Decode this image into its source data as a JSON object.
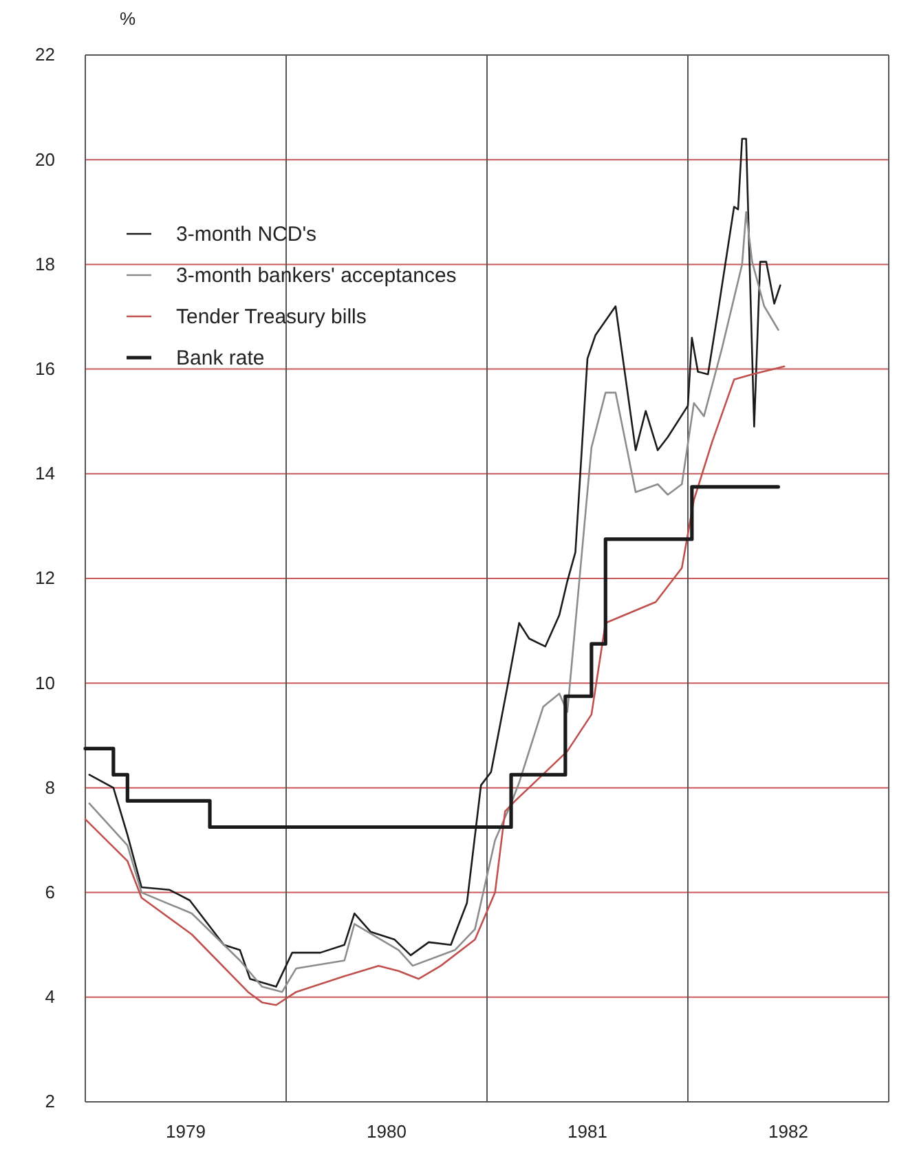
{
  "chart_data": {
    "type": "line",
    "ylabel": "%",
    "xlim": [
      1979,
      1983
    ],
    "xticks": [
      {
        "value": 1979,
        "label": null
      },
      {
        "value": 1979.5,
        "label": "1979"
      },
      {
        "value": 1980,
        "label": null
      },
      {
        "value": 1980.5,
        "label": "1980"
      },
      {
        "value": 1981,
        "label": null
      },
      {
        "value": 1981.5,
        "label": "1981"
      },
      {
        "value": 1982,
        "label": null
      },
      {
        "value": 1982.5,
        "label": "1982"
      },
      {
        "value": 1983,
        "label": null
      }
    ],
    "ylim": [
      2,
      22
    ],
    "yticks": [
      2,
      4,
      6,
      8,
      10,
      12,
      14,
      16,
      18,
      20,
      22
    ],
    "grid": true,
    "legend": "top left",
    "series": [
      {
        "name": "3-month NCD's",
        "color": "#1a1a1a",
        "x": [
          1979.02,
          1979.14,
          1979.21,
          1979.28,
          1979.42,
          1979.52,
          1979.6,
          1979.69,
          1979.77,
          1979.82,
          1979.95,
          1980.03,
          1980.17,
          1980.29,
          1980.34,
          1980.42,
          1980.54,
          1980.62,
          1980.71,
          1980.82,
          1980.9,
          1980.97,
          1981.02,
          1981.05,
          1981.1,
          1981.16,
          1981.21,
          1981.29,
          1981.36,
          1981.4,
          1981.44,
          1981.5,
          1981.54,
          1981.64,
          1981.74,
          1981.79,
          1981.85,
          1981.9,
          1982.0,
          1982.02,
          1982.05,
          1982.1,
          1982.15,
          1982.23,
          1982.25,
          1982.27,
          1982.29,
          1982.33,
          1982.36,
          1982.39,
          1982.43,
          1982.46
        ],
        "values": [
          8.25,
          8.0,
          7.1,
          6.1,
          6.05,
          5.85,
          5.45,
          5.0,
          4.9,
          4.35,
          4.2,
          4.85,
          4.85,
          5.0,
          5.6,
          5.25,
          5.1,
          4.8,
          5.05,
          5.0,
          5.8,
          8.05,
          8.3,
          8.9,
          9.9,
          11.15,
          10.85,
          10.7,
          11.3,
          11.95,
          12.5,
          16.2,
          16.65,
          17.2,
          14.45,
          15.2,
          14.45,
          14.7,
          15.3,
          16.6,
          15.95,
          15.9,
          17.1,
          19.1,
          19.05,
          20.4,
          20.4,
          14.9,
          18.05,
          18.05,
          17.25,
          17.6
        ]
      },
      {
        "name": "3-month bankers' acceptances",
        "color": "#8c8c8c",
        "x": [
          1979.02,
          1979.21,
          1979.28,
          1979.53,
          1979.77,
          1979.88,
          1979.98,
          1980.05,
          1980.29,
          1980.34,
          1980.56,
          1980.63,
          1980.84,
          1980.94,
          1981.04,
          1981.12,
          1981.16,
          1981.28,
          1981.36,
          1981.4,
          1981.52,
          1981.59,
          1981.64,
          1981.74,
          1981.85,
          1981.9,
          1981.97,
          1982.03,
          1982.08,
          1982.17,
          1982.27,
          1982.29,
          1982.32,
          1982.38,
          1982.45
        ],
        "values": [
          7.7,
          6.9,
          6.0,
          5.6,
          4.7,
          4.2,
          4.1,
          4.55,
          4.7,
          5.4,
          4.9,
          4.6,
          4.9,
          5.3,
          7.0,
          7.7,
          8.1,
          9.55,
          9.8,
          9.45,
          14.5,
          15.55,
          15.55,
          13.65,
          13.8,
          13.6,
          13.8,
          15.35,
          15.1,
          16.4,
          18.0,
          19.0,
          18.05,
          17.2,
          16.75
        ]
      },
      {
        "name": "Tender Treasury bills",
        "color": "#c0504d",
        "x": [
          1979.0,
          1979.21,
          1979.28,
          1979.53,
          1979.81,
          1979.88,
          1979.95,
          1980.05,
          1980.29,
          1980.46,
          1980.56,
          1980.66,
          1980.77,
          1980.94,
          1981.04,
          1981.09,
          1981.14,
          1981.4,
          1981.52,
          1981.59,
          1981.84,
          1981.97,
          1982.03,
          1982.12,
          1982.23,
          1982.32,
          1982.48
        ],
        "values": [
          7.4,
          6.6,
          5.9,
          5.2,
          4.1,
          3.9,
          3.85,
          4.1,
          4.4,
          4.6,
          4.5,
          4.35,
          4.6,
          5.1,
          6.0,
          7.55,
          7.75,
          8.7,
          9.4,
          11.15,
          11.55,
          12.2,
          13.5,
          14.6,
          15.8,
          15.9,
          16.05
        ]
      },
      {
        "name": "Bank rate",
        "type": "step",
        "color": "#1a1a1a",
        "x": [
          1979.0,
          1979.14,
          1979.21,
          1979.62,
          1981.12,
          1981.39,
          1981.52,
          1981.59,
          1982.02,
          1982.45
        ],
        "values": [
          8.75,
          8.25,
          7.75,
          7.25,
          8.25,
          9.75,
          10.75,
          12.75,
          13.75,
          13.75
        ]
      }
    ]
  }
}
